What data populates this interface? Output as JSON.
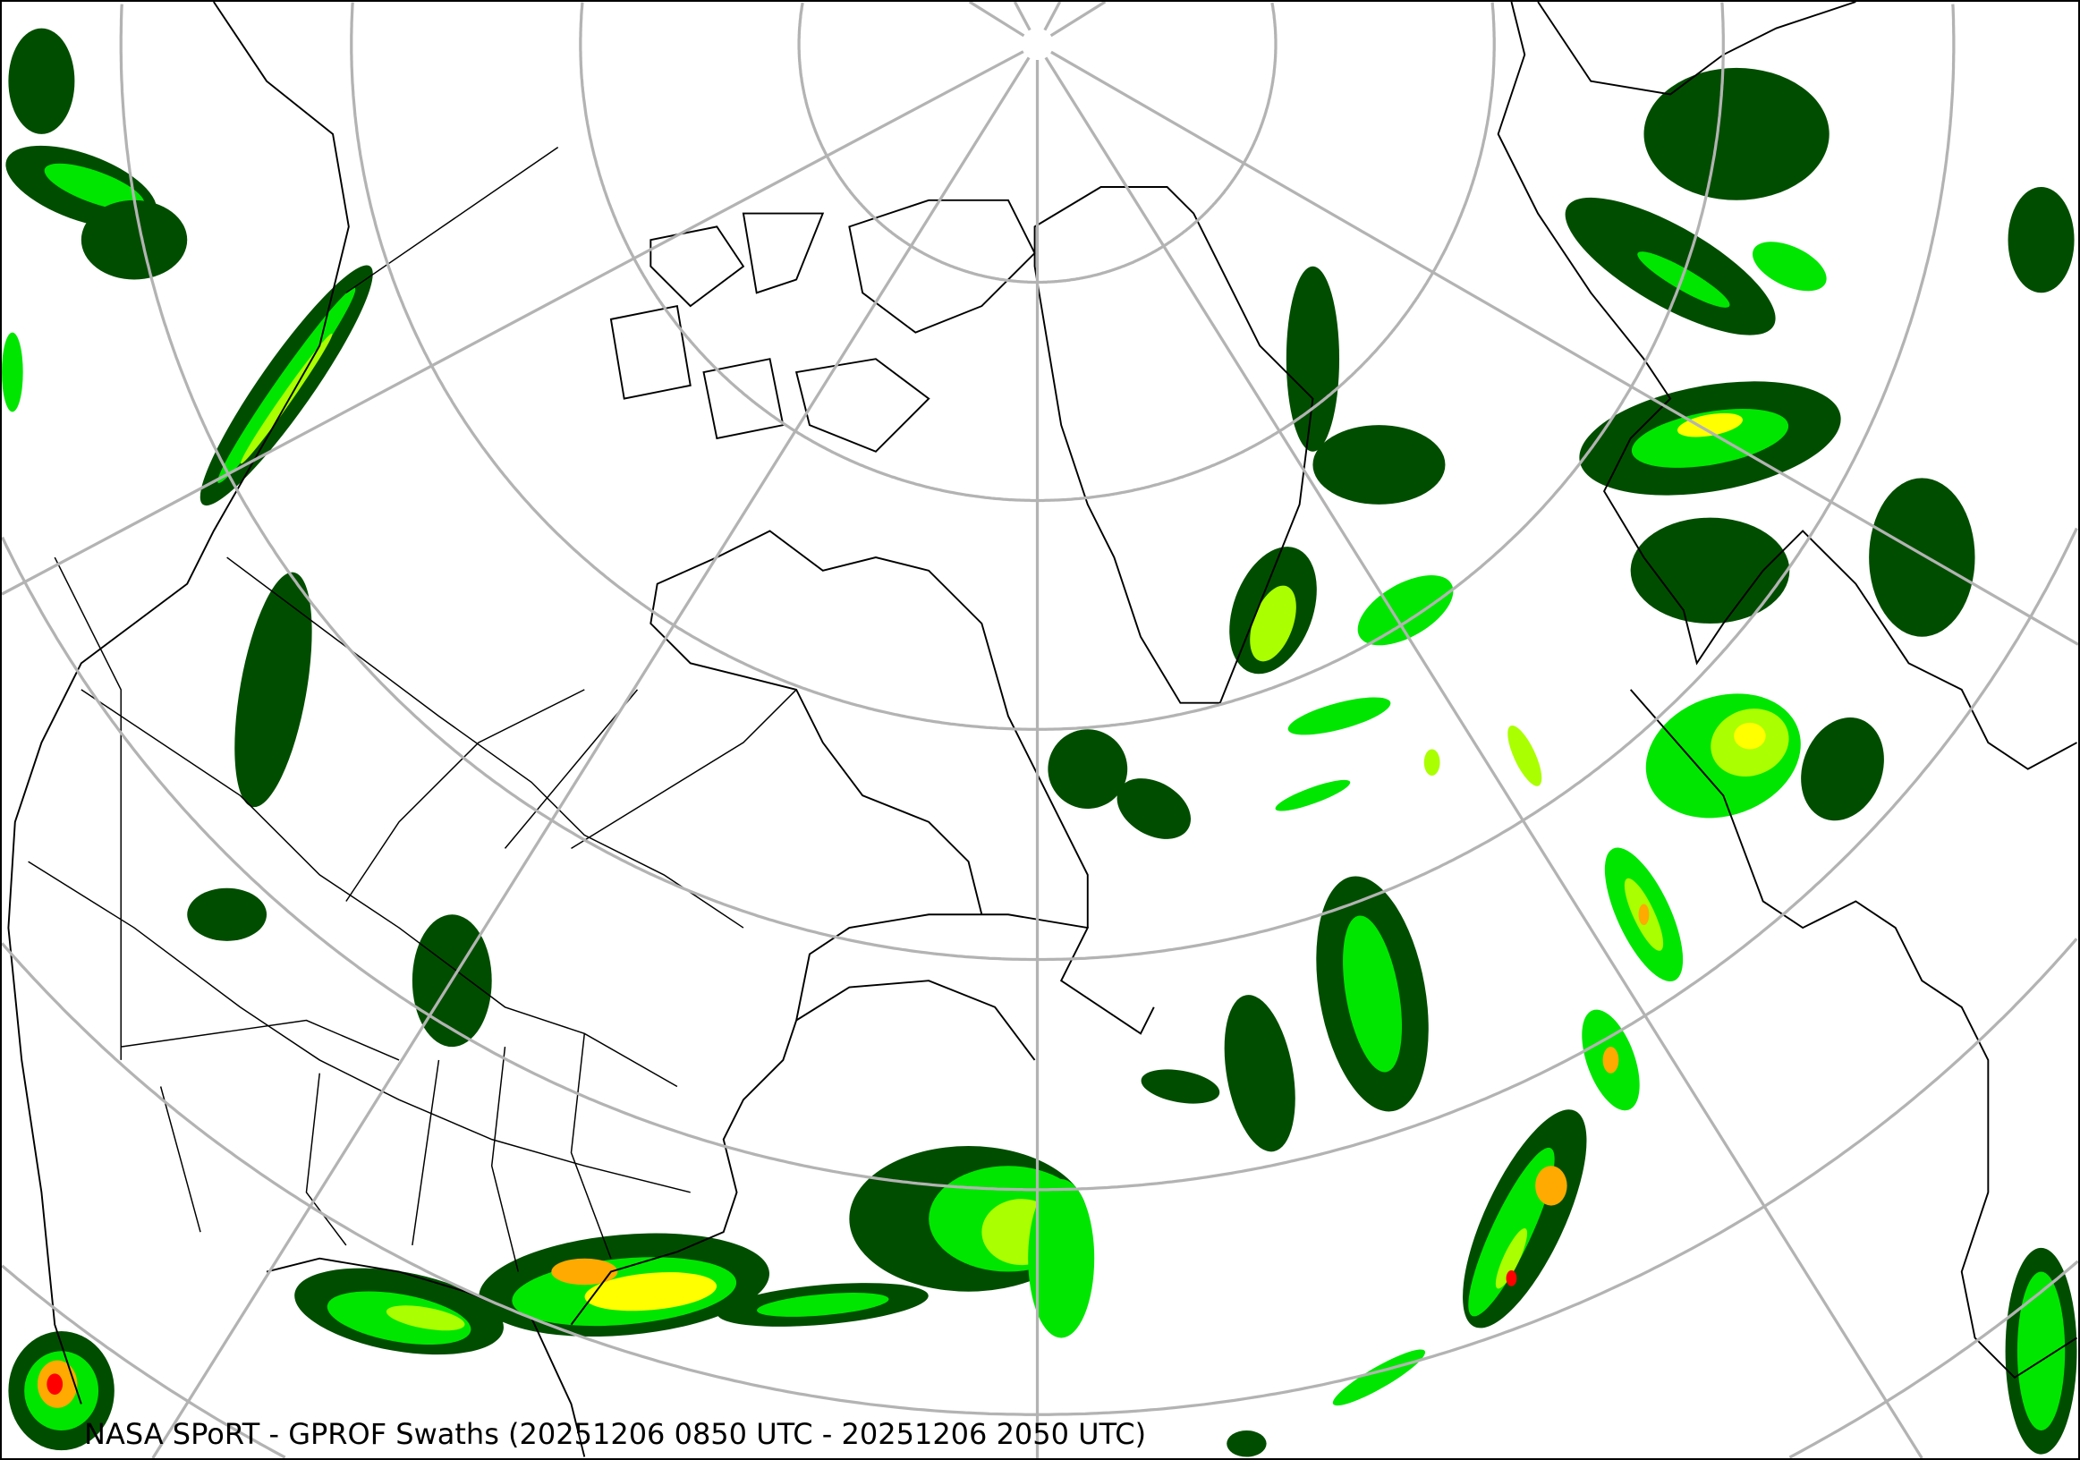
{
  "map": {
    "title": "NASA SPoRT - GPROF Swaths (20251206 0850 UTC - 20251206 2050 UTC)",
    "projection": "north-polar-stereographic",
    "graticule_color": "#b3b3b3",
    "border_color": "#000000",
    "precip_palette": [
      "#004d00",
      "#008c00",
      "#00e600",
      "#aaff00",
      "#ffff00",
      "#ffaa00",
      "#ff0000"
    ]
  }
}
